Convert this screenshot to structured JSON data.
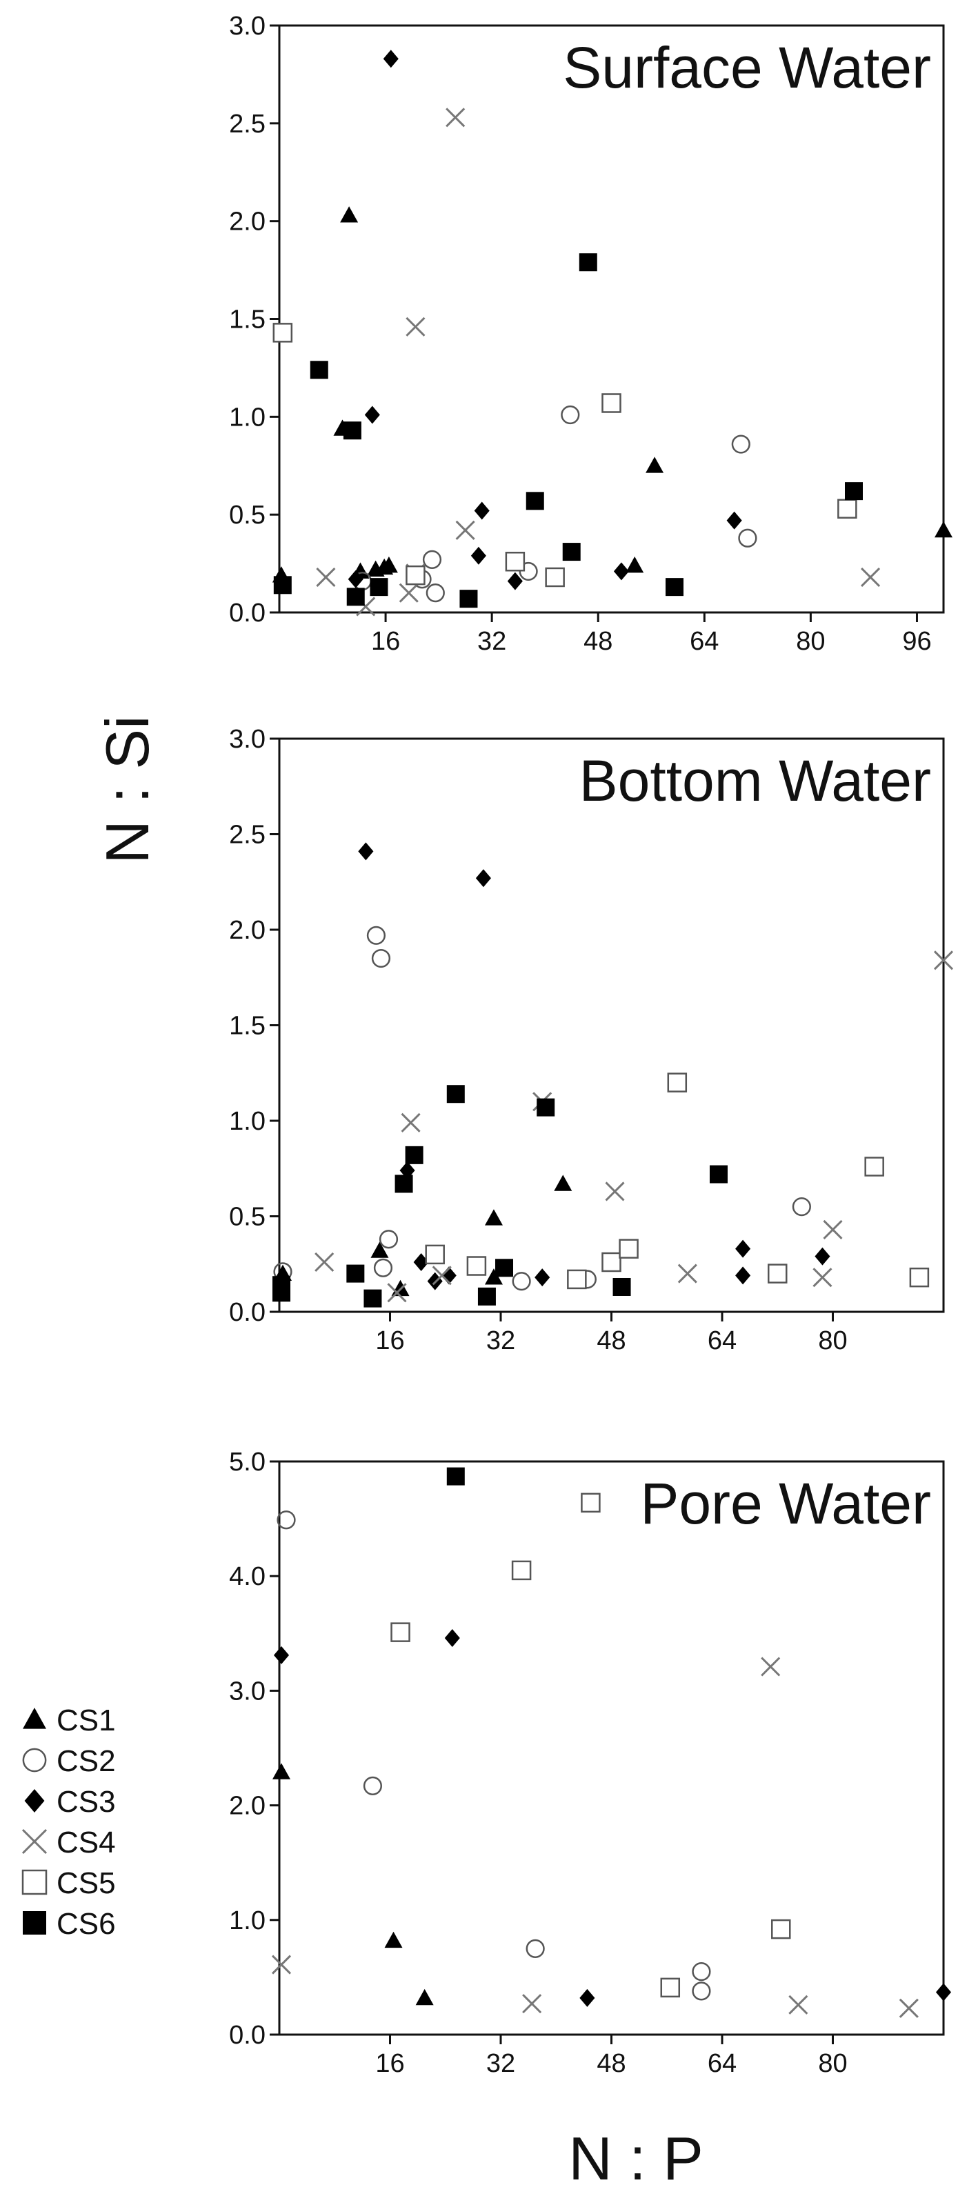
{
  "axis_titles": {
    "y": "N : Si",
    "x": "N : P"
  },
  "colors": {
    "axis": "#111111",
    "open_marker": "#555555",
    "cross_marker": "#777777",
    "filled_marker": "#000000"
  },
  "legend": [
    {
      "label": "CS1",
      "marker": "triangle"
    },
    {
      "label": "CS2",
      "marker": "circle"
    },
    {
      "label": "CS3",
      "marker": "diamond"
    },
    {
      "label": "CS4",
      "marker": "cross"
    },
    {
      "label": "CS5",
      "marker": "square-open"
    },
    {
      "label": "CS6",
      "marker": "square-filled"
    }
  ],
  "chart_data": [
    {
      "type": "scatter",
      "title": "Surface Water",
      "xlabel": "",
      "ylabel": "",
      "xlim": [
        0,
        100
      ],
      "ylim": [
        0,
        3.0
      ],
      "x_ticks": [
        16,
        32,
        48,
        64,
        80,
        96
      ],
      "x_tick_labels": [
        "16",
        "32",
        "48",
        "64",
        "80",
        "96"
      ],
      "y_ticks": [
        0,
        0.5,
        1.0,
        1.5,
        2.0,
        2.5,
        3.0
      ],
      "y_tick_labels": [
        "0.0",
        "0.5",
        "1.0",
        "1.5",
        "2.0",
        "2.5",
        "3.0"
      ],
      "grid": false,
      "series": [
        {
          "name": "CS1",
          "marker": "triangle",
          "x": [
            0.3,
            10.5,
            9.5,
            14.5,
            15.8,
            16.5,
            12.2,
            56.5,
            53.5,
            100
          ],
          "y": [
            0.19,
            2.03,
            0.94,
            0.22,
            0.23,
            0.24,
            0.21,
            0.75,
            0.24,
            0.42
          ]
        },
        {
          "name": "CS2",
          "marker": "circle",
          "x": [
            12.5,
            21.5,
            23.0,
            23.5,
            43.8,
            69.5,
            70.5,
            37.5
          ],
          "y": [
            0.16,
            0.17,
            0.27,
            0.1,
            1.01,
            0.86,
            0.38,
            0.21
          ]
        },
        {
          "name": "CS3",
          "marker": "diamond",
          "x": [
            16.8,
            11.5,
            14.0,
            30.5,
            30.0,
            35.5,
            51.5,
            68.5
          ],
          "y": [
            2.83,
            0.17,
            1.01,
            0.52,
            0.29,
            0.16,
            0.21,
            0.47
          ]
        },
        {
          "name": "CS4",
          "marker": "cross",
          "x": [
            26.5,
            20.5,
            7.0,
            13.0,
            20.5,
            28.0,
            19.5,
            89.0
          ],
          "y": [
            2.53,
            1.46,
            0.18,
            0.03,
            0.2,
            0.42,
            0.1,
            0.18
          ]
        },
        {
          "name": "CS5",
          "marker": "square-open",
          "x": [
            0.5,
            50.0,
            20.5,
            35.5,
            41.5,
            85.5
          ],
          "y": [
            1.43,
            1.07,
            0.19,
            0.26,
            0.18,
            0.53
          ]
        },
        {
          "name": "CS6",
          "marker": "square-filled",
          "x": [
            0.5,
            6.0,
            11.0,
            11.5,
            15.0,
            28.5,
            46.5,
            38.5,
            44.0,
            59.5,
            86.5
          ],
          "y": [
            0.14,
            1.24,
            0.93,
            0.08,
            0.13,
            0.07,
            1.79,
            0.57,
            0.31,
            0.13,
            0.62
          ]
        }
      ]
    },
    {
      "type": "scatter",
      "title": "Bottom Water",
      "xlabel": "",
      "ylabel": "N : Si",
      "xlim": [
        0,
        96
      ],
      "ylim": [
        0,
        3.0
      ],
      "x_ticks": [
        16,
        32,
        48,
        64,
        80
      ],
      "x_tick_labels": [
        "16",
        "32",
        "48",
        "64",
        "80"
      ],
      "y_ticks": [
        0,
        0.5,
        1.0,
        1.5,
        2.0,
        2.5,
        3.0
      ],
      "y_tick_labels": [
        "0.0",
        "0.5",
        "1.0",
        "1.5",
        "2.0",
        "2.5",
        "3.0"
      ],
      "grid": false,
      "series": [
        {
          "name": "CS1",
          "marker": "triangle",
          "x": [
            14.5,
            31.0,
            41.0,
            17.5,
            31.0,
            0.5
          ],
          "y": [
            0.32,
            0.49,
            0.67,
            0.12,
            0.18,
            0.2
          ]
        },
        {
          "name": "CS2",
          "marker": "circle",
          "x": [
            0.5,
            14.0,
            14.7,
            15.8,
            15.0,
            35.0,
            44.5,
            75.5
          ],
          "y": [
            0.21,
            1.97,
            1.85,
            0.38,
            0.23,
            0.16,
            0.17,
            0.55
          ]
        },
        {
          "name": "CS3",
          "marker": "diamond",
          "x": [
            12.5,
            29.5,
            18.5,
            20.5,
            22.5,
            24.5,
            38.0,
            67.0,
            67.0,
            78.5
          ],
          "y": [
            2.41,
            2.27,
            0.74,
            0.26,
            0.16,
            0.19,
            0.18,
            0.33,
            0.19,
            0.29
          ]
        },
        {
          "name": "CS4",
          "marker": "cross",
          "x": [
            6.5,
            19.0,
            17.0,
            38.0,
            48.5,
            59.0,
            80.0,
            78.5,
            96.0,
            23.5
          ],
          "y": [
            0.26,
            0.99,
            0.1,
            1.1,
            0.63,
            0.2,
            0.43,
            0.18,
            1.84,
            0.19
          ]
        },
        {
          "name": "CS5",
          "marker": "square-open",
          "x": [
            22.5,
            28.5,
            43.0,
            48.0,
            50.5,
            57.5,
            72.0,
            86.0,
            92.5
          ],
          "y": [
            0.3,
            0.24,
            0.17,
            0.26,
            0.33,
            1.2,
            0.2,
            0.76,
            0.18
          ]
        },
        {
          "name": "CS6",
          "marker": "square-filled",
          "x": [
            0.3,
            0.3,
            11.0,
            13.5,
            18.0,
            19.5,
            25.5,
            30.0,
            32.5,
            38.5,
            49.5,
            63.5
          ],
          "y": [
            0.1,
            0.14,
            0.2,
            0.07,
            0.67,
            0.82,
            1.14,
            0.08,
            0.23,
            1.07,
            0.13,
            0.72
          ]
        }
      ]
    },
    {
      "type": "scatter",
      "title": "Pore Water",
      "xlabel": "N : P",
      "ylabel": "",
      "xlim": [
        0,
        96
      ],
      "ylim": [
        0,
        5.0
      ],
      "x_ticks": [
        16,
        32,
        48,
        64,
        80
      ],
      "x_tick_labels": [
        "16",
        "32",
        "48",
        "64",
        "80"
      ],
      "y_ticks": [
        0,
        1.0,
        2.0,
        3.0,
        4.0,
        5.0
      ],
      "y_tick_labels": [
        "0.0",
        "1.0",
        "2.0",
        "3.0",
        "4.0",
        "5.0"
      ],
      "grid": false,
      "series": [
        {
          "name": "CS1",
          "marker": "triangle",
          "x": [
            0.3,
            16.5,
            21.0
          ],
          "y": [
            2.29,
            0.82,
            0.32
          ]
        },
        {
          "name": "CS2",
          "marker": "circle",
          "x": [
            1.0,
            13.5,
            37.0,
            61.0,
            61.0
          ],
          "y": [
            4.49,
            2.17,
            0.75,
            0.55,
            0.38
          ]
        },
        {
          "name": "CS3",
          "marker": "diamond",
          "x": [
            0.3,
            25.0,
            44.5,
            96.0
          ],
          "y": [
            3.31,
            3.46,
            0.32,
            0.37
          ]
        },
        {
          "name": "CS4",
          "marker": "cross",
          "x": [
            0.3,
            71.0,
            36.5,
            75.0,
            91.0
          ],
          "y": [
            0.61,
            3.21,
            0.27,
            0.26,
            0.23
          ]
        },
        {
          "name": "CS5",
          "marker": "square-open",
          "x": [
            17.5,
            35.0,
            45.0,
            56.5,
            72.5
          ],
          "y": [
            3.51,
            4.05,
            4.64,
            0.41,
            0.92
          ]
        },
        {
          "name": "CS6",
          "marker": "square-filled",
          "x": [
            25.5
          ],
          "y": [
            4.87
          ]
        }
      ]
    }
  ]
}
